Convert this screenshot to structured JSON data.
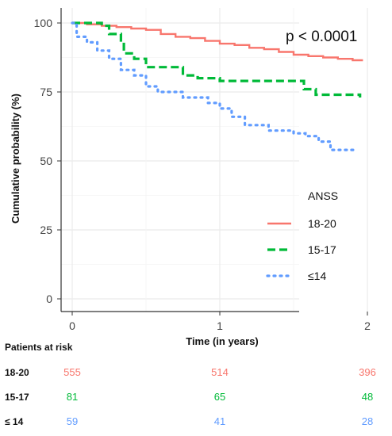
{
  "chart_data": {
    "type": "line",
    "title": "",
    "xlabel": "Time (in years)",
    "ylabel": "Cumulative probability (%)",
    "xlim": [
      0,
      2
    ],
    "ylim": [
      0,
      100
    ],
    "x_ticks": [
      "0",
      "1",
      "2"
    ],
    "y_ticks": [
      "0",
      "25",
      "50",
      "75",
      "100"
    ],
    "grid": true,
    "annotation": "p < 0.0001",
    "legend": {
      "title": "ANSS",
      "placement": "right"
    },
    "series": [
      {
        "name": "18-20",
        "color": "#f8766d",
        "dash": "solid",
        "x": [
          0,
          0.1,
          0.2,
          0.3,
          0.4,
          0.5,
          0.6,
          0.7,
          0.8,
          0.9,
          1.0,
          1.1,
          1.2,
          1.3,
          1.4,
          1.5,
          1.6,
          1.7,
          1.8,
          1.9,
          1.97
        ],
        "y": [
          100,
          99.5,
          99,
          98.5,
          98,
          97.5,
          96,
          95,
          94.5,
          93.5,
          92.5,
          92,
          91,
          90.5,
          89.5,
          88.5,
          88,
          87.5,
          87,
          86.5,
          86.5
        ]
      },
      {
        "name": "15-17",
        "color": "#00ba38",
        "dash": "dashed",
        "x": [
          0,
          0.1,
          0.2,
          0.25,
          0.33,
          0.35,
          0.42,
          0.5,
          0.75,
          0.85,
          1.0,
          1.25,
          1.5,
          1.57,
          1.65,
          1.75,
          1.95
        ],
        "y": [
          100,
          100,
          99,
          96,
          93,
          89,
          87,
          84,
          81,
          80,
          79,
          79,
          79,
          76,
          74,
          74,
          73
        ]
      },
      {
        "name": "≤14",
        "color": "#619cff",
        "dash": "dotted",
        "x": [
          0,
          0.03,
          0.1,
          0.17,
          0.25,
          0.33,
          0.42,
          0.5,
          0.58,
          0.75,
          0.92,
          1.0,
          1.08,
          1.17,
          1.33,
          1.5,
          1.58,
          1.67,
          1.75,
          1.92
        ],
        "y": [
          100,
          95,
          93,
          90,
          87,
          83,
          81,
          77,
          75,
          73,
          71,
          69,
          66,
          63,
          61,
          60,
          59,
          57,
          54,
          54
        ]
      }
    ],
    "risk_table": {
      "title": "Patients at risk",
      "rows": [
        {
          "label": "18-20",
          "color": "#f8766d",
          "values": [
            "555",
            "514",
            "396"
          ]
        },
        {
          "label": "15-17",
          "color": "#00ba38",
          "values": [
            "81",
            "65",
            "48"
          ]
        },
        {
          "label": "≤ 14",
          "color": "#619cff",
          "values": [
            "59",
            "41",
            "28"
          ]
        }
      ]
    }
  }
}
